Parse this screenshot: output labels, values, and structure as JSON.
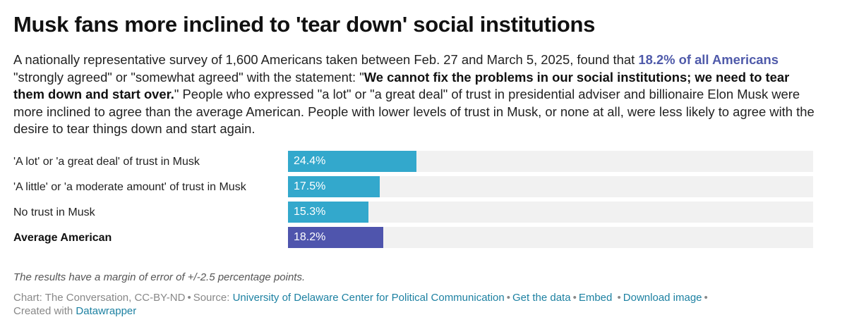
{
  "header": {
    "title": "Musk fans more inclined to 'tear down' social institutions",
    "desc_part1": "A nationally representative survey of 1,600 Americans taken between Feb. 27 and March 5, 2025, found that ",
    "desc_highlight": "18.2% of all Americans",
    "desc_part2": " \"strongly agreed\" or \"somewhat agreed\" with the statement: \"",
    "desc_bold": "We cannot fix the problems in our social institutions; we need to tear them down and start over.",
    "desc_part3": "\" People who expressed \"a lot\" or \"a great deal\" of trust in presidential adviser and billionaire Elon Musk were more inclined to agree than the average American. People with lower levels of trust in Musk, or none at all, were less likely to agree with the desire to tear things down and start again."
  },
  "chart_data": {
    "type": "bar",
    "orientation": "horizontal",
    "title": "Musk fans more inclined to 'tear down' social institutions",
    "xlabel": "",
    "ylabel": "",
    "xlim": [
      0,
      100
    ],
    "grid": false,
    "categories": [
      "'A lot' or 'a great deal' of trust in Musk",
      "'A little' or 'a moderate amount' of trust in Musk",
      "No trust in Musk",
      "Average American"
    ],
    "values": [
      24.4,
      17.5,
      15.3,
      18.2
    ],
    "value_labels": [
      "24.4%",
      "17.5%",
      "15.3%",
      "18.2%"
    ],
    "colors": [
      "#33a8cc",
      "#33a8cc",
      "#33a8cc",
      "#4f55ad"
    ],
    "highlighted": [
      false,
      false,
      false,
      true
    ],
    "track_color": "#f1f1f1"
  },
  "notes": "The results have a margin of error of +/-2.5 percentage points.",
  "footer": {
    "chart_credit": "Chart: The Conversation, CC-BY-ND",
    "source_label": "Source:",
    "source_link": "University of Delaware Center for Political Communication",
    "get_data": "Get the data",
    "embed": "Embed",
    "download": "Download image",
    "created_with": "Created with",
    "datawrapper": "Datawrapper",
    "separator": "•"
  }
}
